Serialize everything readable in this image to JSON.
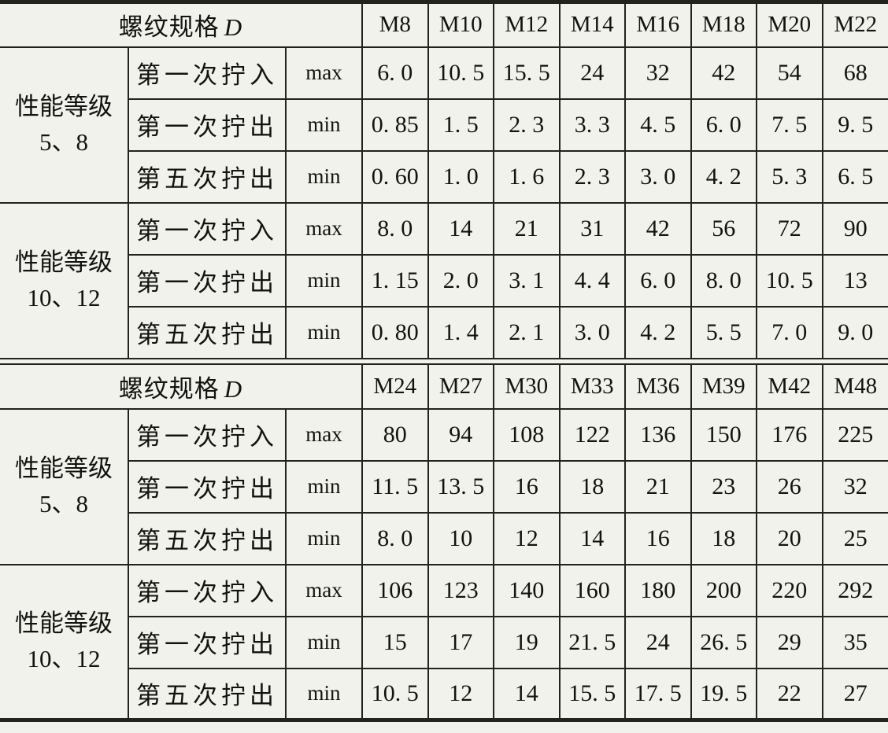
{
  "colors": {
    "background": "#f2f2ec",
    "grid_line": "#23231d",
    "text": "#121210"
  },
  "table": {
    "spec_label": "螺纹规格",
    "spec_symbol": "D",
    "sections": [
      {
        "columns": [
          "M8",
          "M10",
          "M12",
          "M14",
          "M16",
          "M18",
          "M20",
          "M22"
        ],
        "groups": [
          {
            "grade_lines": [
              "性能等级",
              "5、8"
            ],
            "rows": [
              {
                "label": "第一次拧入",
                "limit": "max",
                "values": [
                  "6.0",
                  "10.5",
                  "15.5",
                  "24",
                  "32",
                  "42",
                  "54",
                  "68"
                ]
              },
              {
                "label": "第一次拧出",
                "limit": "min",
                "values": [
                  "0.85",
                  "1.5",
                  "2.3",
                  "3.3",
                  "4.5",
                  "6.0",
                  "7.5",
                  "9.5"
                ]
              },
              {
                "label": "第五次拧出",
                "limit": "min",
                "values": [
                  "0.60",
                  "1.0",
                  "1.6",
                  "2.3",
                  "3.0",
                  "4.2",
                  "5.3",
                  "6.5"
                ]
              }
            ]
          },
          {
            "grade_lines": [
              "性能等级",
              "10、12"
            ],
            "rows": [
              {
                "label": "第一次拧入",
                "limit": "max",
                "values": [
                  "8.0",
                  "14",
                  "21",
                  "31",
                  "42",
                  "56",
                  "72",
                  "90"
                ]
              },
              {
                "label": "第一次拧出",
                "limit": "min",
                "values": [
                  "1.15",
                  "2.0",
                  "3.1",
                  "4.4",
                  "6.0",
                  "8.0",
                  "10.5",
                  "13"
                ]
              },
              {
                "label": "第五次拧出",
                "limit": "min",
                "values": [
                  "0.80",
                  "1.4",
                  "2.1",
                  "3.0",
                  "4.2",
                  "5.5",
                  "7.0",
                  "9.0"
                ]
              }
            ]
          }
        ]
      },
      {
        "columns": [
          "M24",
          "M27",
          "M30",
          "M33",
          "M36",
          "M39",
          "M42",
          "M48"
        ],
        "groups": [
          {
            "grade_lines": [
              "性能等级",
              "5、8"
            ],
            "rows": [
              {
                "label": "第一次拧入",
                "limit": "max",
                "values": [
                  "80",
                  "94",
                  "108",
                  "122",
                  "136",
                  "150",
                  "176",
                  "225"
                ]
              },
              {
                "label": "第一次拧出",
                "limit": "min",
                "values": [
                  "11.5",
                  "13.5",
                  "16",
                  "18",
                  "21",
                  "23",
                  "26",
                  "32"
                ]
              },
              {
                "label": "第五次拧出",
                "limit": "min",
                "values": [
                  "8.0",
                  "10",
                  "12",
                  "14",
                  "16",
                  "18",
                  "20",
                  "25"
                ]
              }
            ]
          },
          {
            "grade_lines": [
              "性能等级",
              "10、12"
            ],
            "rows": [
              {
                "label": "第一次拧入",
                "limit": "max",
                "values": [
                  "106",
                  "123",
                  "140",
                  "160",
                  "180",
                  "200",
                  "220",
                  "292"
                ]
              },
              {
                "label": "第一次拧出",
                "limit": "min",
                "values": [
                  "15",
                  "17",
                  "19",
                  "21.5",
                  "24",
                  "26.5",
                  "29",
                  "35"
                ]
              },
              {
                "label": "第五次拧出",
                "limit": "min",
                "values": [
                  "10.5",
                  "12",
                  "14",
                  "15.5",
                  "17.5",
                  "19.5",
                  "22",
                  "27"
                ]
              }
            ]
          }
        ]
      }
    ]
  }
}
